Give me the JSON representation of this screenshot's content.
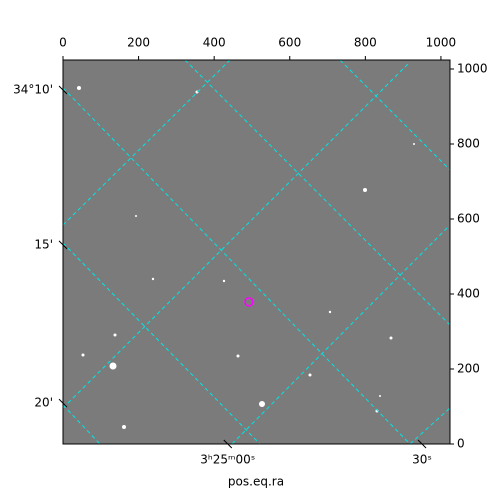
{
  "chart_data": {
    "type": "image",
    "xlabel": "pos.eq.ra",
    "xlim": [
      0,
      1024
    ],
    "ylim": [
      0,
      1024
    ],
    "xticks": [
      0,
      200,
      400,
      600,
      800,
      1000
    ],
    "yticks": [
      0,
      200,
      400,
      600,
      800,
      1000
    ],
    "wcs_yticks": [
      {
        "value": 944,
        "label": "34°10'"
      },
      {
        "value": 531,
        "label": "15'"
      },
      {
        "value": 109,
        "label": "20'"
      }
    ],
    "wcs_xticks": [
      {
        "value": 436,
        "label": "3ʰ25ᵐ00ˢ"
      },
      {
        "value": 950,
        "label": "30ˢ"
      }
    ],
    "marker": {
      "x": 492,
      "y": 379,
      "color": "#ff00ff"
    },
    "grid_color": "#00e5e5"
  }
}
